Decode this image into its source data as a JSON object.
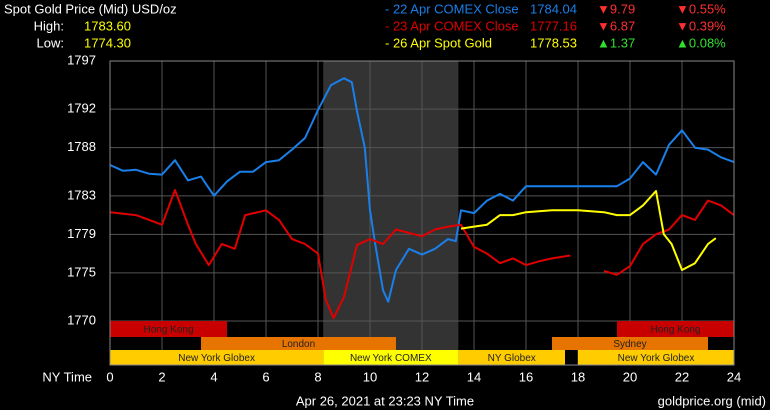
{
  "chart_data": {
    "type": "line",
    "title": "Spot Gold Price (Mid) USD/oz",
    "high_label": "High:",
    "high": "1783.60",
    "low_label": "Low:",
    "low": "1774.30",
    "xlabel": "NY Time",
    "xlim": [
      0,
      24
    ],
    "xticks": [
      0,
      2,
      4,
      6,
      8,
      10,
      12,
      14,
      16,
      18,
      20,
      22,
      24
    ],
    "ylim": [
      1770,
      1797
    ],
    "yticks": [
      1797,
      1792,
      1788,
      1783,
      1779,
      1775,
      1770
    ],
    "grid": true,
    "shaded": [
      8.2,
      13.4
    ],
    "series": [
      {
        "name": "- 22 Apr COMEX Close",
        "color": "#1a7fe8",
        "close": 1784.04,
        "change": "▼9.79",
        "change_pct": "▼0.55%",
        "change_color": "#ff3030",
        "x": [
          0,
          0.5,
          1,
          1.5,
          2,
          2.5,
          3,
          3.5,
          4,
          4.5,
          5,
          5.5,
          6,
          6.5,
          7,
          7.5,
          8,
          8.5,
          9,
          9.3,
          9.5,
          9.8,
          10,
          10.2,
          10.5,
          10.7,
          11,
          11.5,
          12,
          12.5,
          13,
          13.3,
          13.5,
          14,
          14.5,
          15,
          15.5,
          16,
          16.5,
          17,
          18,
          19,
          19.5,
          20,
          20.5,
          21,
          21.5,
          22,
          22.5,
          23,
          23.5,
          24
        ],
        "values": [
          1786.2,
          1785.6,
          1785.7,
          1785.3,
          1785.2,
          1786.7,
          1784.6,
          1785,
          1783,
          1784.5,
          1785.5,
          1785.5,
          1786.5,
          1786.7,
          1787.8,
          1789,
          1791.9,
          1794.5,
          1795.2,
          1794.8,
          1791.8,
          1788,
          1781.5,
          1778,
          1773.2,
          1772,
          1775.3,
          1777.5,
          1776.9,
          1777.5,
          1778.5,
          1778.3,
          1781.5,
          1781.2,
          1782.5,
          1783.2,
          1782.5,
          1784,
          1784,
          1784,
          1784,
          1784,
          1784,
          1784.8,
          1786.5,
          1785.2,
          1788.3,
          1789.8,
          1788,
          1787.8,
          1787,
          1786.5
        ]
      },
      {
        "name": "- 23 Apr COMEX Close",
        "color": "#e00000",
        "close": 1777.16,
        "change": "▼6.87",
        "change_pct": "▼0.39%",
        "change_color": "#ff3030",
        "x": [
          0,
          1,
          2,
          2.5,
          3,
          3.3,
          3.8,
          4.3,
          4.8,
          5.2,
          6,
          6.5,
          7,
          7.5,
          8,
          8.3,
          8.6,
          9,
          9.5,
          10,
          10.5,
          11,
          12,
          12.5,
          13,
          13.5,
          14,
          14.5,
          15,
          15.5,
          16,
          16.5,
          17,
          17.7,
          18.3,
          19,
          19.5,
          20,
          20.5,
          21,
          21.5,
          22,
          22.5,
          23,
          23.5,
          24
        ],
        "values": [
          1781.3,
          1781,
          1780,
          1783.6,
          1780,
          1778,
          1775.8,
          1778,
          1777.5,
          1781,
          1781.5,
          1780.5,
          1778.5,
          1778,
          1777,
          1772.2,
          1770.3,
          1772.5,
          1777.9,
          1778.5,
          1778,
          1779.5,
          1778.8,
          1779.5,
          1779.8,
          1780,
          1777.7,
          1777,
          1776,
          1776.5,
          1775.8,
          1776.2,
          1776.5,
          1776.8,
          null,
          1775.2,
          1774.8,
          1775.7,
          1778,
          1779,
          1779.5,
          1781,
          1780.5,
          1782.5,
          1782,
          1781
        ]
      },
      {
        "name": "- 26 Apr Spot Gold",
        "color": "#ffff00",
        "close": 1778.53,
        "change": "▲1.37",
        "change_pct": "▲0.08%",
        "change_color": "#30e030",
        "x": [
          13.5,
          14,
          14.5,
          15,
          15.5,
          16,
          17,
          18,
          19,
          19.5,
          20,
          20.5,
          21,
          21.3,
          21.6,
          22,
          22.5,
          23,
          23.3
        ],
        "values": [
          1779.6,
          1779.8,
          1780,
          1781,
          1781,
          1781.3,
          1781.5,
          1781.5,
          1781.3,
          1781,
          1781,
          1782,
          1783.5,
          1779,
          1778,
          1775.3,
          1776,
          1778,
          1778.6
        ]
      }
    ],
    "sessions": [
      [
        {
          "name": "Hong Kong",
          "start": 0,
          "end": 4.5,
          "color": "#c80000"
        },
        {
          "name": "Hong Kong",
          "start": 19.5,
          "end": 24,
          "color": "#c80000"
        }
      ],
      [
        {
          "name": "London",
          "start": 3.5,
          "end": 11,
          "color": "#e87400"
        },
        {
          "name": "Sydney",
          "start": 17,
          "end": 23,
          "color": "#e87400"
        }
      ],
      [
        {
          "name": "New York Globex",
          "start": 0,
          "end": 8.2,
          "color": "#ffcc00"
        },
        {
          "name": "New York COMEX",
          "start": 8.2,
          "end": 13.4,
          "color": "#ffff00"
        },
        {
          "name": "NY Globex",
          "start": 13.4,
          "end": 17.5,
          "color": "#ffcc00"
        },
        {
          "name": "New York Globex",
          "start": 18,
          "end": 24,
          "color": "#ffcc00"
        }
      ]
    ],
    "footer": "Apr 26, 2021 at 23:23 NY Time",
    "source": "goldprice.org (mid)"
  }
}
